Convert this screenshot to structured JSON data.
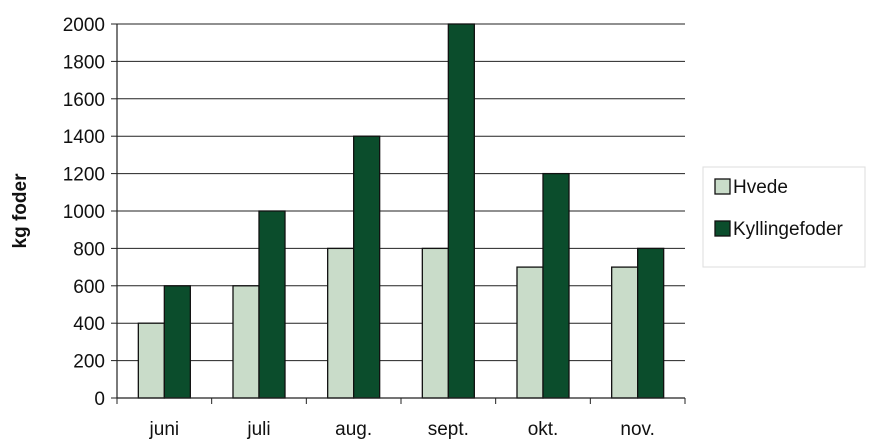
{
  "chart_data": {
    "type": "bar",
    "title": "",
    "xlabel": "",
    "ylabel": "kg foder",
    "categories": [
      "juni",
      "juli",
      "aug.",
      "sept.",
      "okt.",
      "nov."
    ],
    "series": [
      {
        "name": "Hvede",
        "values": [
          400,
          600,
          800,
          800,
          700,
          700
        ],
        "color": "#c9dcc9"
      },
      {
        "name": "Kyllingefoder",
        "values": [
          600,
          1000,
          1400,
          2000,
          1200,
          800
        ],
        "color": "#0b4d2c"
      }
    ],
    "ylim": [
      0,
      2000
    ],
    "yticks": [
      0,
      200,
      400,
      600,
      800,
      1000,
      1200,
      1400,
      1600,
      1800,
      2000
    ],
    "grid": true,
    "legend": "right"
  }
}
